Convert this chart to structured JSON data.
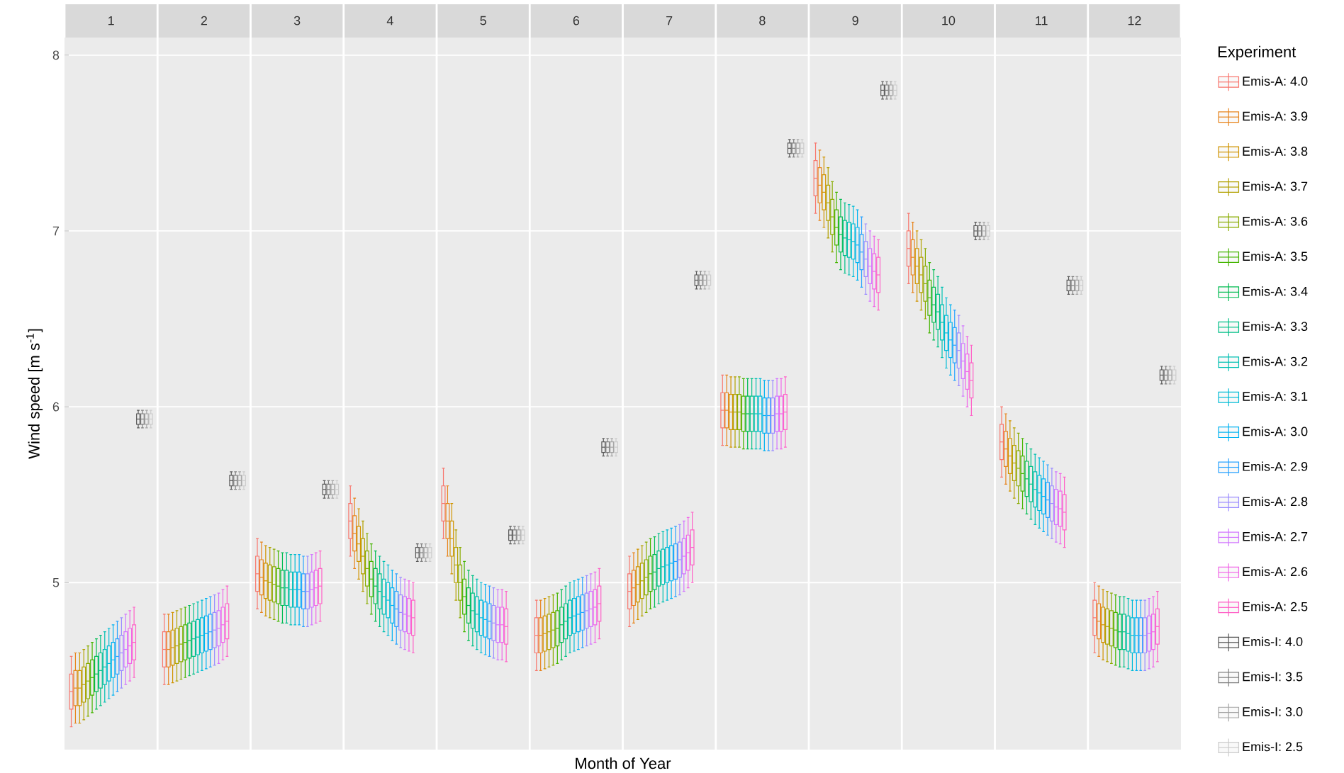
{
  "chart_data": {
    "type": "box",
    "xlabel": "Month of Year",
    "ylabel": "Wind speed [m s$^{-1}$]",
    "legend_title": "Experiment",
    "legend": "right",
    "grid": "y",
    "categories": [
      "1",
      "2",
      "3",
      "4",
      "5",
      "6",
      "7",
      "8",
      "9",
      "10",
      "11",
      "12"
    ],
    "ylim": [
      4.05,
      8.1
    ],
    "yticks": [
      5,
      6,
      7,
      8
    ],
    "series": [
      {
        "name": "Emis-A: 4.0",
        "color": "#F8766D",
        "boxes": [
          {
            "low": 4.18,
            "q1": 4.28,
            "median": 4.38,
            "q3": 4.48,
            "high": 4.58
          },
          {
            "low": 4.42,
            "q1": 4.52,
            "median": 4.62,
            "q3": 4.72,
            "high": 4.82
          },
          {
            "low": 4.85,
            "q1": 4.95,
            "median": 5.05,
            "q3": 5.15,
            "high": 5.25
          },
          {
            "low": 5.15,
            "q1": 5.25,
            "median": 5.35,
            "q3": 5.45,
            "high": 5.55
          },
          {
            "low": 5.25,
            "q1": 5.35,
            "median": 5.45,
            "q3": 5.55,
            "high": 5.65
          },
          {
            "low": 4.5,
            "q1": 4.6,
            "median": 4.7,
            "q3": 4.8,
            "high": 4.9
          },
          {
            "low": 4.75,
            "q1": 4.85,
            "median": 4.95,
            "q3": 5.05,
            "high": 5.15
          },
          {
            "low": 5.78,
            "q1": 5.88,
            "median": 5.98,
            "q3": 6.08,
            "high": 6.18
          },
          {
            "low": 7.1,
            "q1": 7.2,
            "median": 7.3,
            "q3": 7.4,
            "high": 7.5
          },
          {
            "low": 6.7,
            "q1": 6.8,
            "median": 6.9,
            "q3": 7.0,
            "high": 7.1
          },
          {
            "low": 5.6,
            "q1": 5.7,
            "median": 5.8,
            "q3": 5.9,
            "high": 6.0
          },
          {
            "low": 4.6,
            "q1": 4.7,
            "median": 4.8,
            "q3": 4.9,
            "high": 5.0
          }
        ]
      },
      {
        "name": "Emis-A: 3.9",
        "color": "#E7851E",
        "boxes": [
          {
            "low": 4.2,
            "q1": 4.3,
            "median": 4.4,
            "q3": 4.5,
            "high": 4.6
          },
          {
            "low": 4.42,
            "q1": 4.52,
            "median": 4.62,
            "q3": 4.72,
            "high": 4.82
          },
          {
            "low": 4.83,
            "q1": 4.93,
            "median": 5.03,
            "q3": 5.13,
            "high": 5.23
          },
          {
            "low": 5.08,
            "q1": 5.18,
            "median": 5.28,
            "q3": 5.38,
            "high": 5.48
          },
          {
            "low": 5.15,
            "q1": 5.25,
            "median": 5.35,
            "q3": 5.45,
            "high": 5.55
          },
          {
            "low": 4.5,
            "q1": 4.6,
            "median": 4.7,
            "q3": 4.8,
            "high": 4.9
          },
          {
            "low": 4.77,
            "q1": 4.87,
            "median": 4.97,
            "q3": 5.07,
            "high": 5.17
          },
          {
            "low": 5.78,
            "q1": 5.88,
            "median": 5.98,
            "q3": 6.08,
            "high": 6.18
          },
          {
            "low": 7.06,
            "q1": 7.16,
            "median": 7.26,
            "q3": 7.36,
            "high": 7.46
          },
          {
            "low": 6.65,
            "q1": 6.75,
            "median": 6.85,
            "q3": 6.95,
            "high": 7.05
          },
          {
            "low": 5.56,
            "q1": 5.66,
            "median": 5.76,
            "q3": 5.86,
            "high": 5.96
          },
          {
            "low": 4.58,
            "q1": 4.68,
            "median": 4.78,
            "q3": 4.88,
            "high": 4.98
          }
        ]
      },
      {
        "name": "Emis-A: 3.8",
        "color": "#D09400",
        "boxes": [
          {
            "low": 4.2,
            "q1": 4.3,
            "median": 4.4,
            "q3": 4.5,
            "high": 4.6
          },
          {
            "low": 4.43,
            "q1": 4.53,
            "median": 4.63,
            "q3": 4.73,
            "high": 4.83
          },
          {
            "low": 4.81,
            "q1": 4.91,
            "median": 5.01,
            "q3": 5.11,
            "high": 5.21
          },
          {
            "low": 5.02,
            "q1": 5.12,
            "median": 5.22,
            "q3": 5.32,
            "high": 5.42
          },
          {
            "low": 5.05,
            "q1": 5.15,
            "median": 5.25,
            "q3": 5.35,
            "high": 5.45
          },
          {
            "low": 4.51,
            "q1": 4.61,
            "median": 4.71,
            "q3": 4.81,
            "high": 4.91
          },
          {
            "low": 4.79,
            "q1": 4.89,
            "median": 4.99,
            "q3": 5.09,
            "high": 5.19
          },
          {
            "low": 5.77,
            "q1": 5.87,
            "median": 5.97,
            "q3": 6.07,
            "high": 6.17
          },
          {
            "low": 7.02,
            "q1": 7.12,
            "median": 7.22,
            "q3": 7.32,
            "high": 7.42
          },
          {
            "low": 6.6,
            "q1": 6.7,
            "median": 6.8,
            "q3": 6.9,
            "high": 7.0
          },
          {
            "low": 5.52,
            "q1": 5.62,
            "median": 5.72,
            "q3": 5.82,
            "high": 5.92
          },
          {
            "low": 4.56,
            "q1": 4.66,
            "median": 4.76,
            "q3": 4.86,
            "high": 4.96
          }
        ]
      },
      {
        "name": "Emis-A: 3.7",
        "color": "#B2A100",
        "boxes": [
          {
            "low": 4.22,
            "q1": 4.32,
            "median": 4.42,
            "q3": 4.52,
            "high": 4.62
          },
          {
            "low": 4.44,
            "q1": 4.54,
            "median": 4.64,
            "q3": 4.74,
            "high": 4.84
          },
          {
            "low": 4.8,
            "q1": 4.9,
            "median": 5.0,
            "q3": 5.1,
            "high": 5.2
          },
          {
            "low": 4.95,
            "q1": 5.05,
            "median": 5.15,
            "q3": 5.25,
            "high": 5.35
          },
          {
            "low": 4.9,
            "q1": 5.0,
            "median": 5.1,
            "q3": 5.2,
            "high": 5.3
          },
          {
            "low": 4.52,
            "q1": 4.62,
            "median": 4.72,
            "q3": 4.82,
            "high": 4.92
          },
          {
            "low": 4.81,
            "q1": 4.91,
            "median": 5.01,
            "q3": 5.11,
            "high": 5.21
          },
          {
            "low": 5.77,
            "q1": 5.87,
            "median": 5.97,
            "q3": 6.07,
            "high": 6.17
          },
          {
            "low": 6.96,
            "q1": 7.06,
            "median": 7.16,
            "q3": 7.26,
            "high": 7.36
          },
          {
            "low": 6.55,
            "q1": 6.65,
            "median": 6.75,
            "q3": 6.85,
            "high": 6.95
          },
          {
            "low": 5.48,
            "q1": 5.58,
            "median": 5.68,
            "q3": 5.78,
            "high": 5.88
          },
          {
            "low": 4.55,
            "q1": 4.65,
            "median": 4.75,
            "q3": 4.85,
            "high": 4.95
          }
        ]
      },
      {
        "name": "Emis-A: 3.6",
        "color": "#89AC00",
        "boxes": [
          {
            "low": 4.24,
            "q1": 4.34,
            "median": 4.44,
            "q3": 4.54,
            "high": 4.64
          },
          {
            "low": 4.45,
            "q1": 4.55,
            "median": 4.65,
            "q3": 4.75,
            "high": 4.85
          },
          {
            "low": 4.79,
            "q1": 4.89,
            "median": 4.99,
            "q3": 5.09,
            "high": 5.19
          },
          {
            "low": 4.88,
            "q1": 4.98,
            "median": 5.08,
            "q3": 5.18,
            "high": 5.28
          },
          {
            "low": 4.8,
            "q1": 4.9,
            "median": 5.0,
            "q3": 5.1,
            "high": 5.2
          },
          {
            "low": 4.53,
            "q1": 4.63,
            "median": 4.73,
            "q3": 4.83,
            "high": 4.93
          },
          {
            "low": 4.83,
            "q1": 4.93,
            "median": 5.03,
            "q3": 5.13,
            "high": 5.23
          },
          {
            "low": 5.77,
            "q1": 5.87,
            "median": 5.97,
            "q3": 6.07,
            "high": 6.17
          },
          {
            "low": 6.88,
            "q1": 6.98,
            "median": 7.08,
            "q3": 7.18,
            "high": 7.28
          },
          {
            "low": 6.5,
            "q1": 6.6,
            "median": 6.7,
            "q3": 6.8,
            "high": 6.9
          },
          {
            "low": 5.45,
            "q1": 5.55,
            "median": 5.65,
            "q3": 5.75,
            "high": 5.85
          },
          {
            "low": 4.54,
            "q1": 4.64,
            "median": 4.74,
            "q3": 4.84,
            "high": 4.94
          }
        ]
      },
      {
        "name": "Emis-A: 3.5",
        "color": "#45B500",
        "boxes": [
          {
            "low": 4.26,
            "q1": 4.36,
            "median": 4.46,
            "q3": 4.56,
            "high": 4.66
          },
          {
            "low": 4.46,
            "q1": 4.56,
            "median": 4.66,
            "q3": 4.76,
            "high": 4.86
          },
          {
            "low": 4.78,
            "q1": 4.88,
            "median": 4.98,
            "q3": 5.08,
            "high": 5.18
          },
          {
            "low": 4.82,
            "q1": 4.92,
            "median": 5.02,
            "q3": 5.12,
            "high": 5.22
          },
          {
            "low": 4.72,
            "q1": 4.82,
            "median": 4.92,
            "q3": 5.02,
            "high": 5.12
          },
          {
            "low": 4.54,
            "q1": 4.64,
            "median": 4.74,
            "q3": 4.84,
            "high": 4.94
          },
          {
            "low": 4.85,
            "q1": 4.95,
            "median": 5.05,
            "q3": 5.15,
            "high": 5.25
          },
          {
            "low": 5.76,
            "q1": 5.86,
            "median": 5.96,
            "q3": 6.06,
            "high": 6.16
          },
          {
            "low": 6.82,
            "q1": 6.92,
            "median": 7.02,
            "q3": 7.12,
            "high": 7.22
          },
          {
            "low": 6.42,
            "q1": 6.52,
            "median": 6.62,
            "q3": 6.72,
            "high": 6.82
          },
          {
            "low": 5.42,
            "q1": 5.52,
            "median": 5.62,
            "q3": 5.72,
            "high": 5.82
          },
          {
            "low": 4.53,
            "q1": 4.63,
            "median": 4.73,
            "q3": 4.83,
            "high": 4.93
          }
        ]
      },
      {
        "name": "Emis-A: 3.4",
        "color": "#00BC51",
        "boxes": [
          {
            "low": 4.28,
            "q1": 4.38,
            "median": 4.48,
            "q3": 4.58,
            "high": 4.68
          },
          {
            "low": 4.47,
            "q1": 4.57,
            "median": 4.67,
            "q3": 4.77,
            "high": 4.87
          },
          {
            "low": 4.77,
            "q1": 4.87,
            "median": 4.97,
            "q3": 5.07,
            "high": 5.17
          },
          {
            "low": 4.78,
            "q1": 4.88,
            "median": 4.98,
            "q3": 5.08,
            "high": 5.18
          },
          {
            "low": 4.67,
            "q1": 4.77,
            "median": 4.87,
            "q3": 4.97,
            "high": 5.07
          },
          {
            "low": 4.56,
            "q1": 4.66,
            "median": 4.76,
            "q3": 4.86,
            "high": 4.96
          },
          {
            "low": 4.86,
            "q1": 4.96,
            "median": 5.06,
            "q3": 5.16,
            "high": 5.26
          },
          {
            "low": 5.76,
            "q1": 5.86,
            "median": 5.96,
            "q3": 6.06,
            "high": 6.16
          },
          {
            "low": 6.78,
            "q1": 6.88,
            "median": 6.98,
            "q3": 7.08,
            "high": 7.18
          },
          {
            "low": 6.38,
            "q1": 6.48,
            "median": 6.58,
            "q3": 6.68,
            "high": 6.78
          },
          {
            "low": 5.39,
            "q1": 5.49,
            "median": 5.59,
            "q3": 5.69,
            "high": 5.79
          },
          {
            "low": 4.52,
            "q1": 4.62,
            "median": 4.72,
            "q3": 4.82,
            "high": 4.92
          }
        ]
      },
      {
        "name": "Emis-A: 3.3",
        "color": "#00C087",
        "boxes": [
          {
            "low": 4.3,
            "q1": 4.4,
            "median": 4.5,
            "q3": 4.6,
            "high": 4.7
          },
          {
            "low": 4.48,
            "q1": 4.58,
            "median": 4.68,
            "q3": 4.78,
            "high": 4.88
          },
          {
            "low": 4.77,
            "q1": 4.87,
            "median": 4.97,
            "q3": 5.07,
            "high": 5.17
          },
          {
            "low": 4.75,
            "q1": 4.85,
            "median": 4.95,
            "q3": 5.05,
            "high": 5.15
          },
          {
            "low": 4.64,
            "q1": 4.74,
            "median": 4.84,
            "q3": 4.94,
            "high": 5.04
          },
          {
            "low": 4.58,
            "q1": 4.68,
            "median": 4.78,
            "q3": 4.88,
            "high": 4.98
          },
          {
            "low": 4.88,
            "q1": 4.98,
            "median": 5.08,
            "q3": 5.18,
            "high": 5.28
          },
          {
            "low": 5.76,
            "q1": 5.86,
            "median": 5.96,
            "q3": 6.06,
            "high": 6.16
          },
          {
            "low": 6.76,
            "q1": 6.86,
            "median": 6.96,
            "q3": 7.06,
            "high": 7.16
          },
          {
            "low": 6.34,
            "q1": 6.44,
            "median": 6.54,
            "q3": 6.64,
            "high": 6.74
          },
          {
            "low": 5.36,
            "q1": 5.46,
            "median": 5.56,
            "q3": 5.66,
            "high": 5.76
          },
          {
            "low": 4.52,
            "q1": 4.62,
            "median": 4.72,
            "q3": 4.82,
            "high": 4.92
          }
        ]
      },
      {
        "name": "Emis-A: 3.2",
        "color": "#00C0B2",
        "boxes": [
          {
            "low": 4.32,
            "q1": 4.42,
            "median": 4.52,
            "q3": 4.62,
            "high": 4.72
          },
          {
            "low": 4.49,
            "q1": 4.59,
            "median": 4.69,
            "q3": 4.79,
            "high": 4.89
          },
          {
            "low": 4.76,
            "q1": 4.86,
            "median": 4.96,
            "q3": 5.06,
            "high": 5.16
          },
          {
            "low": 4.72,
            "q1": 4.82,
            "median": 4.92,
            "q3": 5.02,
            "high": 5.12
          },
          {
            "low": 4.62,
            "q1": 4.72,
            "median": 4.82,
            "q3": 4.92,
            "high": 5.02
          },
          {
            "low": 4.6,
            "q1": 4.7,
            "median": 4.8,
            "q3": 4.9,
            "high": 5.0
          },
          {
            "low": 4.89,
            "q1": 4.99,
            "median": 5.09,
            "q3": 5.19,
            "high": 5.29
          },
          {
            "low": 5.76,
            "q1": 5.86,
            "median": 5.96,
            "q3": 6.06,
            "high": 6.16
          },
          {
            "low": 6.75,
            "q1": 6.85,
            "median": 6.95,
            "q3": 7.05,
            "high": 7.15
          },
          {
            "low": 6.28,
            "q1": 6.38,
            "median": 6.48,
            "q3": 6.58,
            "high": 6.68
          },
          {
            "low": 5.33,
            "q1": 5.43,
            "median": 5.53,
            "q3": 5.63,
            "high": 5.73
          },
          {
            "low": 4.51,
            "q1": 4.61,
            "median": 4.71,
            "q3": 4.81,
            "high": 4.91
          }
        ]
      },
      {
        "name": "Emis-A: 3.1",
        "color": "#00BCD6",
        "boxes": [
          {
            "low": 4.34,
            "q1": 4.44,
            "median": 4.54,
            "q3": 4.64,
            "high": 4.74
          },
          {
            "low": 4.5,
            "q1": 4.6,
            "median": 4.7,
            "q3": 4.8,
            "high": 4.9
          },
          {
            "low": 4.76,
            "q1": 4.86,
            "median": 4.96,
            "q3": 5.06,
            "high": 5.16
          },
          {
            "low": 4.7,
            "q1": 4.8,
            "median": 4.9,
            "q3": 5.0,
            "high": 5.1
          },
          {
            "low": 4.6,
            "q1": 4.7,
            "median": 4.8,
            "q3": 4.9,
            "high": 5.0
          },
          {
            "low": 4.61,
            "q1": 4.71,
            "median": 4.81,
            "q3": 4.91,
            "high": 5.01
          },
          {
            "low": 4.9,
            "q1": 5.0,
            "median": 5.1,
            "q3": 5.2,
            "high": 5.3
          },
          {
            "low": 5.76,
            "q1": 5.86,
            "median": 5.96,
            "q3": 6.06,
            "high": 6.16
          },
          {
            "low": 6.74,
            "q1": 6.84,
            "median": 6.94,
            "q3": 7.04,
            "high": 7.14
          },
          {
            "low": 6.22,
            "q1": 6.32,
            "median": 6.42,
            "q3": 6.52,
            "high": 6.62
          },
          {
            "low": 5.31,
            "q1": 5.41,
            "median": 5.51,
            "q3": 5.61,
            "high": 5.71
          },
          {
            "low": 4.5,
            "q1": 4.6,
            "median": 4.7,
            "q3": 4.8,
            "high": 4.9
          }
        ]
      },
      {
        "name": "Emis-A: 3.0",
        "color": "#00B3F2",
        "boxes": [
          {
            "low": 4.36,
            "q1": 4.46,
            "median": 4.56,
            "q3": 4.66,
            "high": 4.76
          },
          {
            "low": 4.51,
            "q1": 4.61,
            "median": 4.71,
            "q3": 4.81,
            "high": 4.91
          },
          {
            "low": 4.76,
            "q1": 4.86,
            "median": 4.96,
            "q3": 5.06,
            "high": 5.16
          },
          {
            "low": 4.67,
            "q1": 4.77,
            "median": 4.87,
            "q3": 4.97,
            "high": 5.07
          },
          {
            "low": 4.59,
            "q1": 4.69,
            "median": 4.79,
            "q3": 4.89,
            "high": 4.99
          },
          {
            "low": 4.62,
            "q1": 4.72,
            "median": 4.82,
            "q3": 4.92,
            "high": 5.02
          },
          {
            "low": 4.91,
            "q1": 5.01,
            "median": 5.11,
            "q3": 5.21,
            "high": 5.31
          },
          {
            "low": 5.75,
            "q1": 5.85,
            "median": 5.95,
            "q3": 6.05,
            "high": 6.15
          },
          {
            "low": 6.72,
            "q1": 6.82,
            "median": 6.92,
            "q3": 7.02,
            "high": 7.12
          },
          {
            "low": 6.18,
            "q1": 6.28,
            "median": 6.38,
            "q3": 6.48,
            "high": 6.58
          },
          {
            "low": 5.29,
            "q1": 5.39,
            "median": 5.49,
            "q3": 5.59,
            "high": 5.69
          },
          {
            "low": 4.5,
            "q1": 4.6,
            "median": 4.7,
            "q3": 4.8,
            "high": 4.9
          }
        ]
      },
      {
        "name": "Emis-A: 2.9",
        "color": "#29A3FF",
        "boxes": [
          {
            "low": 4.38,
            "q1": 4.48,
            "median": 4.58,
            "q3": 4.68,
            "high": 4.78
          },
          {
            "low": 4.52,
            "q1": 4.62,
            "median": 4.72,
            "q3": 4.82,
            "high": 4.92
          },
          {
            "low": 4.75,
            "q1": 4.85,
            "median": 4.95,
            "q3": 5.05,
            "high": 5.15
          },
          {
            "low": 4.65,
            "q1": 4.75,
            "median": 4.85,
            "q3": 4.95,
            "high": 5.05
          },
          {
            "low": 4.58,
            "q1": 4.68,
            "median": 4.78,
            "q3": 4.88,
            "high": 4.98
          },
          {
            "low": 4.63,
            "q1": 4.73,
            "median": 4.83,
            "q3": 4.93,
            "high": 5.03
          },
          {
            "low": 4.92,
            "q1": 5.02,
            "median": 5.12,
            "q3": 5.22,
            "high": 5.32
          },
          {
            "low": 5.75,
            "q1": 5.85,
            "median": 5.95,
            "q3": 6.05,
            "high": 6.15
          },
          {
            "low": 6.68,
            "q1": 6.78,
            "median": 6.88,
            "q3": 6.98,
            "high": 7.08
          },
          {
            "low": 6.15,
            "q1": 6.25,
            "median": 6.35,
            "q3": 6.45,
            "high": 6.55
          },
          {
            "low": 5.27,
            "q1": 5.37,
            "median": 5.47,
            "q3": 5.57,
            "high": 5.67
          },
          {
            "low": 4.5,
            "q1": 4.6,
            "median": 4.7,
            "q3": 4.8,
            "high": 4.9
          }
        ]
      },
      {
        "name": "Emis-A: 2.8",
        "color": "#9C8DFF",
        "boxes": [
          {
            "low": 4.4,
            "q1": 4.5,
            "median": 4.6,
            "q3": 4.7,
            "high": 4.8
          },
          {
            "low": 4.53,
            "q1": 4.63,
            "median": 4.73,
            "q3": 4.83,
            "high": 4.93
          },
          {
            "low": 4.75,
            "q1": 4.85,
            "median": 4.95,
            "q3": 5.05,
            "high": 5.15
          },
          {
            "low": 4.63,
            "q1": 4.73,
            "median": 4.83,
            "q3": 4.93,
            "high": 5.03
          },
          {
            "low": 4.57,
            "q1": 4.67,
            "median": 4.77,
            "q3": 4.87,
            "high": 4.97
          },
          {
            "low": 4.64,
            "q1": 4.74,
            "median": 4.84,
            "q3": 4.94,
            "high": 5.04
          },
          {
            "low": 4.93,
            "q1": 5.03,
            "median": 5.13,
            "q3": 5.23,
            "high": 5.33
          },
          {
            "low": 5.75,
            "q1": 5.85,
            "median": 5.95,
            "q3": 6.05,
            "high": 6.15
          },
          {
            "low": 6.64,
            "q1": 6.74,
            "median": 6.84,
            "q3": 6.94,
            "high": 7.04
          },
          {
            "low": 6.12,
            "q1": 6.22,
            "median": 6.32,
            "q3": 6.42,
            "high": 6.52
          },
          {
            "low": 5.25,
            "q1": 5.35,
            "median": 5.45,
            "q3": 5.55,
            "high": 5.65
          },
          {
            "low": 4.5,
            "q1": 4.6,
            "median": 4.7,
            "q3": 4.8,
            "high": 4.9
          }
        ]
      },
      {
        "name": "Emis-A: 2.7",
        "color": "#D277FF",
        "boxes": [
          {
            "low": 4.42,
            "q1": 4.52,
            "median": 4.62,
            "q3": 4.72,
            "high": 4.82
          },
          {
            "low": 4.54,
            "q1": 4.64,
            "median": 4.74,
            "q3": 4.84,
            "high": 4.94
          },
          {
            "low": 4.76,
            "q1": 4.86,
            "median": 4.96,
            "q3": 5.06,
            "high": 5.16
          },
          {
            "low": 4.62,
            "q1": 4.72,
            "median": 4.82,
            "q3": 4.92,
            "high": 5.02
          },
          {
            "low": 4.56,
            "q1": 4.66,
            "median": 4.76,
            "q3": 4.86,
            "high": 4.96
          },
          {
            "low": 4.65,
            "q1": 4.75,
            "median": 4.85,
            "q3": 4.95,
            "high": 5.05
          },
          {
            "low": 4.95,
            "q1": 5.05,
            "median": 5.15,
            "q3": 5.25,
            "high": 5.35
          },
          {
            "low": 5.76,
            "q1": 5.86,
            "median": 5.96,
            "q3": 6.06,
            "high": 6.16
          },
          {
            "low": 6.6,
            "q1": 6.7,
            "median": 6.8,
            "q3": 6.9,
            "high": 7.0
          },
          {
            "low": 6.06,
            "q1": 6.16,
            "median": 6.26,
            "q3": 6.36,
            "high": 6.46
          },
          {
            "low": 5.23,
            "q1": 5.33,
            "median": 5.43,
            "q3": 5.53,
            "high": 5.63
          },
          {
            "low": 4.51,
            "q1": 4.61,
            "median": 4.71,
            "q3": 4.81,
            "high": 4.91
          }
        ]
      },
      {
        "name": "Emis-A: 2.6",
        "color": "#F166E8",
        "boxes": [
          {
            "low": 4.44,
            "q1": 4.54,
            "median": 4.64,
            "q3": 4.74,
            "high": 4.84
          },
          {
            "low": 4.56,
            "q1": 4.66,
            "median": 4.76,
            "q3": 4.86,
            "high": 4.96
          },
          {
            "low": 4.77,
            "q1": 4.87,
            "median": 4.97,
            "q3": 5.07,
            "high": 5.17
          },
          {
            "low": 4.61,
            "q1": 4.71,
            "median": 4.81,
            "q3": 4.91,
            "high": 5.01
          },
          {
            "low": 4.56,
            "q1": 4.66,
            "median": 4.76,
            "q3": 4.86,
            "high": 4.96
          },
          {
            "low": 4.66,
            "q1": 4.76,
            "median": 4.86,
            "q3": 4.96,
            "high": 5.06
          },
          {
            "low": 4.97,
            "q1": 5.07,
            "median": 5.17,
            "q3": 5.27,
            "high": 5.37
          },
          {
            "low": 5.76,
            "q1": 5.86,
            "median": 5.96,
            "q3": 6.06,
            "high": 6.16
          },
          {
            "low": 6.57,
            "q1": 6.67,
            "median": 6.77,
            "q3": 6.87,
            "high": 6.97
          },
          {
            "low": 6.0,
            "q1": 6.1,
            "median": 6.2,
            "q3": 6.3,
            "high": 6.4
          },
          {
            "low": 5.22,
            "q1": 5.32,
            "median": 5.42,
            "q3": 5.52,
            "high": 5.62
          },
          {
            "low": 4.52,
            "q1": 4.62,
            "median": 4.72,
            "q3": 4.82,
            "high": 4.92
          }
        ]
      },
      {
        "name": "Emis-A: 2.5",
        "color": "#FF61C7",
        "boxes": [
          {
            "low": 4.46,
            "q1": 4.56,
            "median": 4.66,
            "q3": 4.76,
            "high": 4.86
          },
          {
            "low": 4.58,
            "q1": 4.68,
            "median": 4.78,
            "q3": 4.88,
            "high": 4.98
          },
          {
            "low": 4.78,
            "q1": 4.88,
            "median": 4.98,
            "q3": 5.08,
            "high": 5.18
          },
          {
            "low": 4.6,
            "q1": 4.7,
            "median": 4.8,
            "q3": 4.9,
            "high": 5.0
          },
          {
            "low": 4.55,
            "q1": 4.65,
            "median": 4.75,
            "q3": 4.85,
            "high": 4.95
          },
          {
            "low": 4.68,
            "q1": 4.78,
            "median": 4.88,
            "q3": 4.98,
            "high": 5.08
          },
          {
            "low": 5.0,
            "q1": 5.1,
            "median": 5.2,
            "q3": 5.3,
            "high": 5.4
          },
          {
            "low": 5.77,
            "q1": 5.87,
            "median": 5.97,
            "q3": 6.07,
            "high": 6.17
          },
          {
            "low": 6.55,
            "q1": 6.65,
            "median": 6.75,
            "q3": 6.85,
            "high": 6.95
          },
          {
            "low": 5.95,
            "q1": 6.05,
            "median": 6.15,
            "q3": 6.25,
            "high": 6.35
          },
          {
            "low": 5.2,
            "q1": 5.3,
            "median": 5.4,
            "q3": 5.5,
            "high": 5.6
          },
          {
            "low": 4.55,
            "q1": 4.65,
            "median": 4.75,
            "q3": 4.85,
            "high": 4.95
          }
        ]
      },
      {
        "name": "Emis-I: 4.0",
        "color": "#595959",
        "boxes": [
          {
            "low": 5.88,
            "q1": 5.9,
            "median": 5.93,
            "q3": 5.96,
            "high": 5.98
          },
          {
            "low": 5.53,
            "q1": 5.55,
            "median": 5.58,
            "q3": 5.61,
            "high": 5.63
          },
          {
            "low": 5.48,
            "q1": 5.5,
            "median": 5.53,
            "q3": 5.56,
            "high": 5.58
          },
          {
            "low": 5.12,
            "q1": 5.14,
            "median": 5.17,
            "q3": 5.2,
            "high": 5.22
          },
          {
            "low": 5.22,
            "q1": 5.24,
            "median": 5.27,
            "q3": 5.3,
            "high": 5.32
          },
          {
            "low": 5.72,
            "q1": 5.74,
            "median": 5.77,
            "q3": 5.8,
            "high": 5.82
          },
          {
            "low": 6.67,
            "q1": 6.69,
            "median": 6.72,
            "q3": 6.75,
            "high": 6.77
          },
          {
            "low": 7.42,
            "q1": 7.44,
            "median": 7.47,
            "q3": 7.5,
            "high": 7.52
          },
          {
            "low": 7.75,
            "q1": 7.77,
            "median": 7.8,
            "q3": 7.83,
            "high": 7.85
          },
          {
            "low": 6.95,
            "q1": 6.97,
            "median": 7.0,
            "q3": 7.03,
            "high": 7.05
          },
          {
            "low": 6.64,
            "q1": 6.66,
            "median": 6.69,
            "q3": 6.72,
            "high": 6.74
          },
          {
            "low": 6.13,
            "q1": 6.15,
            "median": 6.18,
            "q3": 6.21,
            "high": 6.23
          }
        ]
      },
      {
        "name": "Emis-I: 3.5",
        "color": "#808080",
        "boxes": [
          {
            "low": 5.88,
            "q1": 5.9,
            "median": 5.93,
            "q3": 5.96,
            "high": 5.98
          },
          {
            "low": 5.53,
            "q1": 5.55,
            "median": 5.58,
            "q3": 5.61,
            "high": 5.63
          },
          {
            "low": 5.48,
            "q1": 5.5,
            "median": 5.53,
            "q3": 5.56,
            "high": 5.58
          },
          {
            "low": 5.12,
            "q1": 5.14,
            "median": 5.17,
            "q3": 5.2,
            "high": 5.22
          },
          {
            "low": 5.22,
            "q1": 5.24,
            "median": 5.27,
            "q3": 5.3,
            "high": 5.32
          },
          {
            "low": 5.72,
            "q1": 5.74,
            "median": 5.77,
            "q3": 5.8,
            "high": 5.82
          },
          {
            "low": 6.67,
            "q1": 6.69,
            "median": 6.72,
            "q3": 6.75,
            "high": 6.77
          },
          {
            "low": 7.42,
            "q1": 7.44,
            "median": 7.47,
            "q3": 7.5,
            "high": 7.52
          },
          {
            "low": 7.75,
            "q1": 7.77,
            "median": 7.8,
            "q3": 7.83,
            "high": 7.85
          },
          {
            "low": 6.95,
            "q1": 6.97,
            "median": 7.0,
            "q3": 7.03,
            "high": 7.05
          },
          {
            "low": 6.64,
            "q1": 6.66,
            "median": 6.69,
            "q3": 6.72,
            "high": 6.74
          },
          {
            "low": 6.13,
            "q1": 6.15,
            "median": 6.18,
            "q3": 6.21,
            "high": 6.23
          }
        ]
      },
      {
        "name": "Emis-I: 3.0",
        "color": "#A6A6A6",
        "boxes": [
          {
            "low": 5.88,
            "q1": 5.9,
            "median": 5.93,
            "q3": 5.96,
            "high": 5.98
          },
          {
            "low": 5.53,
            "q1": 5.55,
            "median": 5.58,
            "q3": 5.61,
            "high": 5.63
          },
          {
            "low": 5.48,
            "q1": 5.5,
            "median": 5.53,
            "q3": 5.56,
            "high": 5.58
          },
          {
            "low": 5.12,
            "q1": 5.14,
            "median": 5.17,
            "q3": 5.2,
            "high": 5.22
          },
          {
            "low": 5.22,
            "q1": 5.24,
            "median": 5.27,
            "q3": 5.3,
            "high": 5.32
          },
          {
            "low": 5.72,
            "q1": 5.74,
            "median": 5.77,
            "q3": 5.8,
            "high": 5.82
          },
          {
            "low": 6.67,
            "q1": 6.69,
            "median": 6.72,
            "q3": 6.75,
            "high": 6.77
          },
          {
            "low": 7.42,
            "q1": 7.44,
            "median": 7.47,
            "q3": 7.5,
            "high": 7.52
          },
          {
            "low": 7.75,
            "q1": 7.77,
            "median": 7.8,
            "q3": 7.83,
            "high": 7.85
          },
          {
            "low": 6.95,
            "q1": 6.97,
            "median": 7.0,
            "q3": 7.03,
            "high": 7.05
          },
          {
            "low": 6.64,
            "q1": 6.66,
            "median": 6.69,
            "q3": 6.72,
            "high": 6.74
          },
          {
            "low": 6.13,
            "q1": 6.15,
            "median": 6.18,
            "q3": 6.21,
            "high": 6.23
          }
        ]
      },
      {
        "name": "Emis-I: 2.5",
        "color": "#CCCCCC",
        "boxes": [
          {
            "low": 5.88,
            "q1": 5.9,
            "median": 5.93,
            "q3": 5.96,
            "high": 5.98
          },
          {
            "low": 5.53,
            "q1": 5.55,
            "median": 5.58,
            "q3": 5.61,
            "high": 5.63
          },
          {
            "low": 5.48,
            "q1": 5.5,
            "median": 5.53,
            "q3": 5.56,
            "high": 5.58
          },
          {
            "low": 5.12,
            "q1": 5.14,
            "median": 5.17,
            "q3": 5.2,
            "high": 5.22
          },
          {
            "low": 5.22,
            "q1": 5.24,
            "median": 5.27,
            "q3": 5.3,
            "high": 5.32
          },
          {
            "low": 5.72,
            "q1": 5.74,
            "median": 5.77,
            "q3": 5.8,
            "high": 5.82
          },
          {
            "low": 6.67,
            "q1": 6.69,
            "median": 6.72,
            "q3": 6.75,
            "high": 6.77
          },
          {
            "low": 7.42,
            "q1": 7.44,
            "median": 7.47,
            "q3": 7.5,
            "high": 7.52
          },
          {
            "low": 7.75,
            "q1": 7.77,
            "median": 7.8,
            "q3": 7.83,
            "high": 7.85
          },
          {
            "low": 6.95,
            "q1": 6.97,
            "median": 7.0,
            "q3": 7.03,
            "high": 7.05
          },
          {
            "low": 6.64,
            "q1": 6.66,
            "median": 6.69,
            "q3": 6.72,
            "high": 6.74
          },
          {
            "low": 6.13,
            "q1": 6.15,
            "median": 6.18,
            "q3": 6.21,
            "high": 6.23
          }
        ]
      }
    ]
  }
}
